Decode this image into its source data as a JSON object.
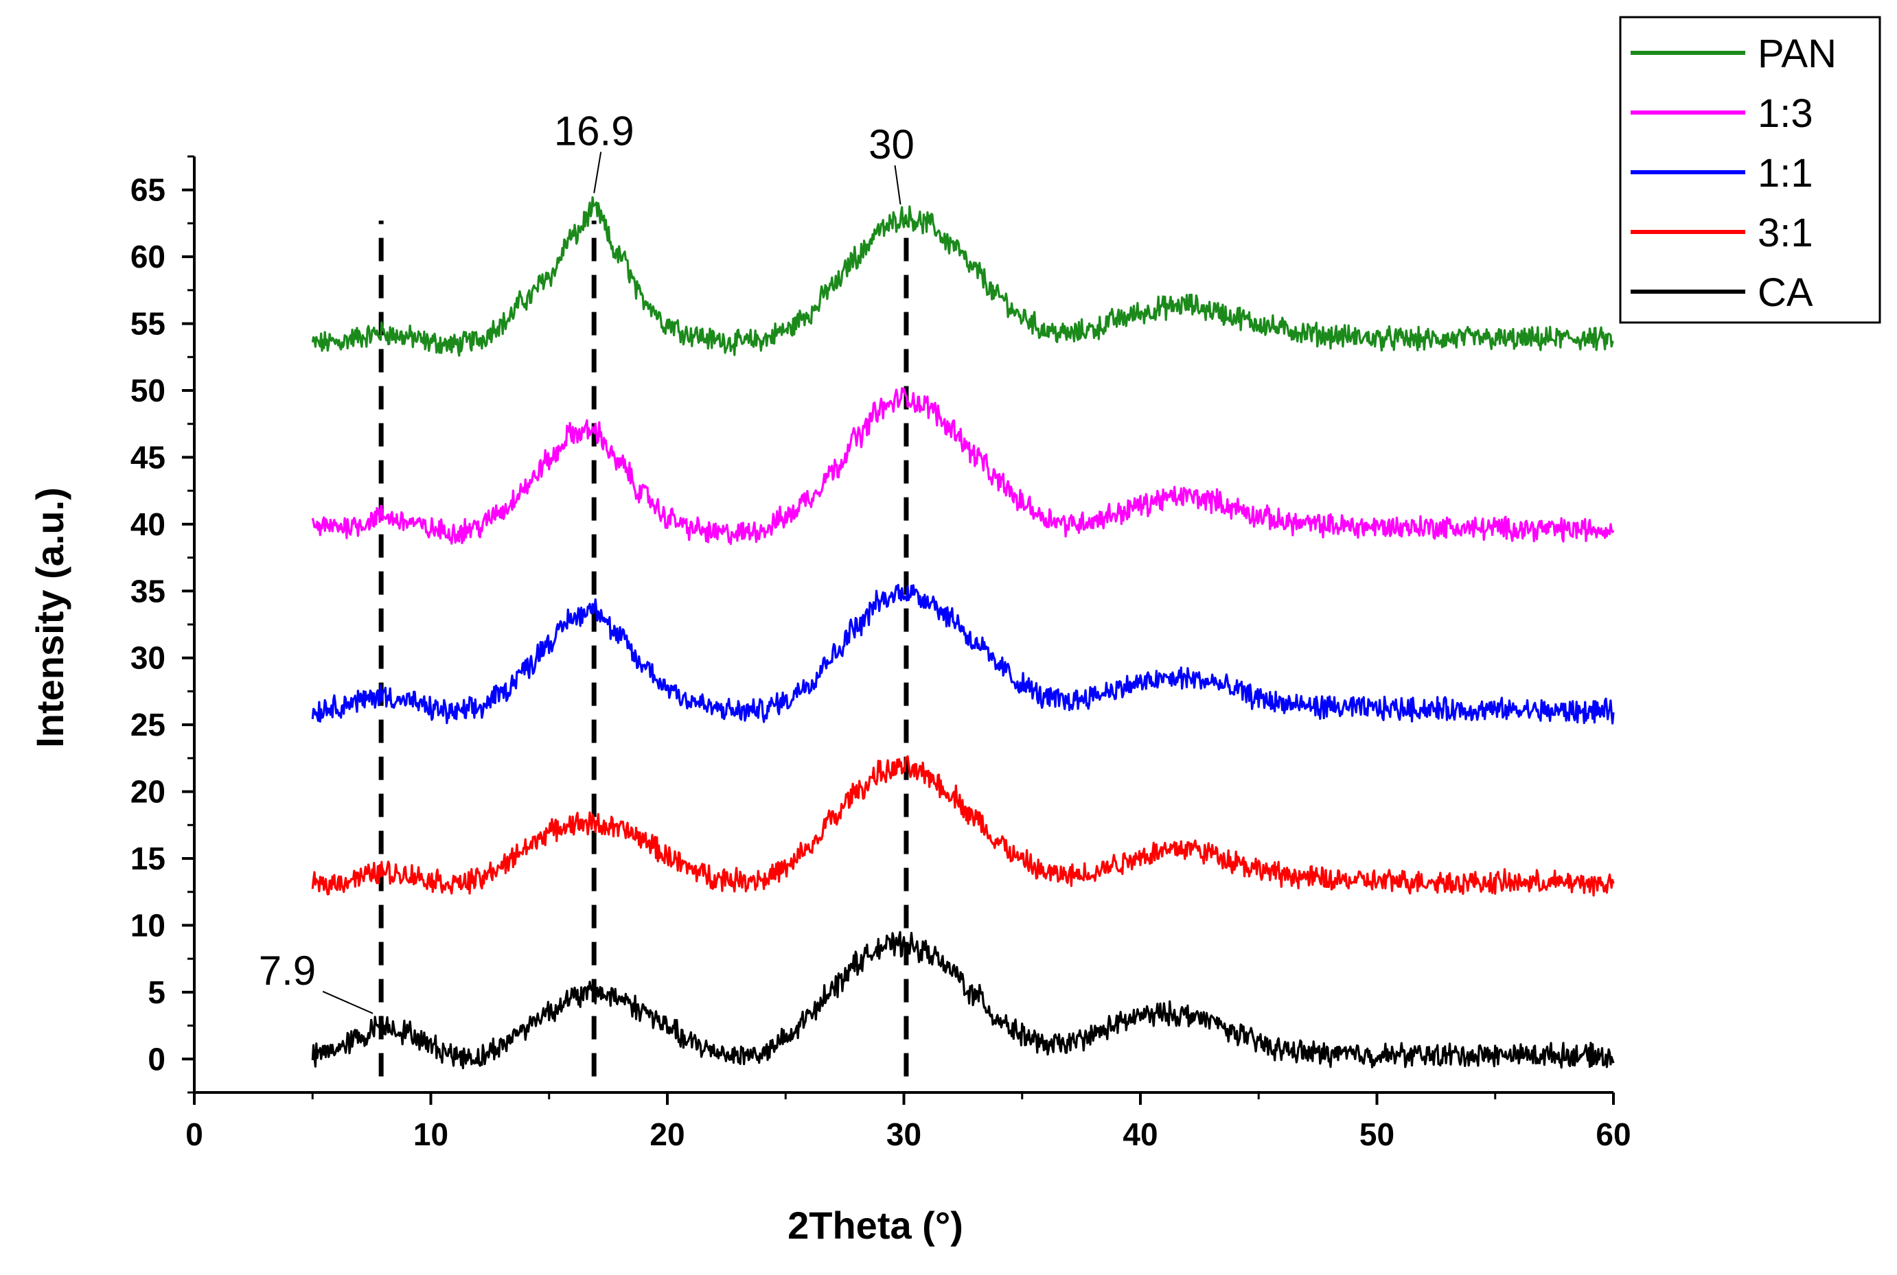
{
  "chart_data": {
    "type": "line",
    "title": "",
    "xlabel": "2Theta (°)",
    "ylabel": "Intensity (a.u.)",
    "xlim": [
      0,
      60
    ],
    "ylim": [
      -2.5,
      67.5
    ],
    "x_ticks": [
      0,
      10,
      20,
      30,
      40,
      50,
      60
    ],
    "y_ticks": [
      0,
      5,
      10,
      15,
      20,
      25,
      30,
      35,
      40,
      45,
      50,
      55,
      60,
      65
    ],
    "grid": false,
    "legend_position": "top-right",
    "x": [
      5,
      6,
      7,
      7.9,
      9,
      10,
      11,
      12,
      13,
      14,
      15,
      16,
      16.9,
      18,
      19,
      20,
      21,
      22,
      23,
      24,
      25,
      26,
      27,
      28,
      29,
      30,
      31,
      32,
      33,
      34,
      35,
      36,
      37,
      38,
      39,
      40,
      41,
      42,
      43,
      44,
      45,
      46,
      47,
      48,
      50,
      52,
      54,
      56,
      58,
      60
    ],
    "series": [
      {
        "name": "PAN",
        "color": "#1b8a1b",
        "values": [
          53.5,
          53.6,
          54.0,
          54.3,
          54.0,
          53.6,
          53.4,
          53.8,
          55.0,
          56.8,
          58.6,
          61.5,
          63.5,
          60.0,
          56.8,
          55.0,
          54.2,
          53.8,
          53.6,
          53.8,
          54.5,
          55.8,
          57.8,
          60.0,
          62.0,
          63.0,
          62.5,
          61.0,
          59.0,
          57.0,
          55.5,
          54.5,
          54.2,
          54.6,
          55.3,
          55.8,
          56.2,
          56.4,
          56.0,
          55.5,
          55.0,
          54.6,
          54.3,
          54.1,
          53.9,
          53.8,
          53.9,
          53.8,
          53.9,
          53.8
        ]
      },
      {
        "name": "1:3",
        "color": "#ff00ff",
        "values": [
          39.8,
          39.8,
          40.0,
          40.6,
          40.2,
          39.6,
          39.4,
          39.8,
          41.0,
          42.8,
          44.8,
          46.8,
          47.0,
          44.5,
          42.2,
          40.5,
          39.7,
          39.3,
          39.3,
          39.6,
          40.5,
          42.0,
          44.0,
          46.5,
          48.6,
          49.5,
          48.8,
          47.2,
          45.2,
          43.2,
          41.6,
          40.5,
          40.0,
          40.3,
          40.8,
          41.4,
          41.9,
          42.1,
          41.8,
          41.2,
          40.6,
          40.2,
          40.0,
          39.9,
          39.8,
          39.8,
          39.7,
          39.7,
          39.6,
          39.6
        ]
      },
      {
        "name": "1:1",
        "color": "#0000ff",
        "values": [
          26.0,
          26.4,
          26.8,
          27.2,
          26.8,
          26.2,
          25.9,
          26.2,
          27.4,
          29.2,
          31.2,
          33.0,
          33.8,
          31.5,
          29.4,
          27.8,
          26.8,
          26.2,
          26.0,
          26.1,
          26.8,
          28.2,
          30.2,
          32.4,
          34.2,
          35.0,
          34.4,
          33.0,
          31.2,
          29.4,
          28.0,
          27.0,
          26.8,
          27.2,
          27.7,
          28.1,
          28.4,
          28.5,
          28.2,
          27.6,
          27.0,
          26.6,
          26.4,
          26.3,
          26.2,
          26.2,
          26.1,
          26.1,
          26.0,
          26.0
        ]
      },
      {
        "name": "3:1",
        "color": "#ff0000",
        "values": [
          13.0,
          13.2,
          13.6,
          14.0,
          13.8,
          13.4,
          13.1,
          13.4,
          14.4,
          15.8,
          17.0,
          17.6,
          17.6,
          17.2,
          16.4,
          15.2,
          14.2,
          13.6,
          13.4,
          13.5,
          14.2,
          15.8,
          18.0,
          20.0,
          21.4,
          21.8,
          21.2,
          19.8,
          18.0,
          16.2,
          14.8,
          13.9,
          13.7,
          14.0,
          14.6,
          15.2,
          15.6,
          15.8,
          15.4,
          14.8,
          14.2,
          13.8,
          13.6,
          13.4,
          13.3,
          13.3,
          13.2,
          13.2,
          13.2,
          13.1
        ]
      },
      {
        "name": "CA",
        "color": "#000000",
        "values": [
          0.2,
          0.8,
          1.6,
          2.6,
          2.0,
          1.0,
          0.3,
          0.1,
          1.0,
          2.4,
          3.6,
          4.6,
          5.0,
          4.6,
          3.6,
          2.4,
          1.2,
          0.6,
          0.3,
          0.4,
          1.4,
          3.2,
          5.4,
          7.2,
          8.4,
          8.6,
          8.0,
          6.6,
          4.8,
          3.0,
          1.8,
          1.0,
          1.2,
          1.8,
          2.6,
          3.2,
          3.4,
          3.3,
          2.8,
          2.0,
          1.2,
          0.7,
          0.5,
          0.4,
          0.3,
          0.3,
          0.3,
          0.3,
          0.3,
          0.2
        ]
      }
    ],
    "annotations": [
      {
        "x": 7.9,
        "label": "7.9"
      },
      {
        "x": 16.9,
        "label": "16.9"
      },
      {
        "x": 30,
        "label": "30"
      }
    ],
    "reference_lines": [
      7.9,
      16.9,
      30.1
    ]
  }
}
